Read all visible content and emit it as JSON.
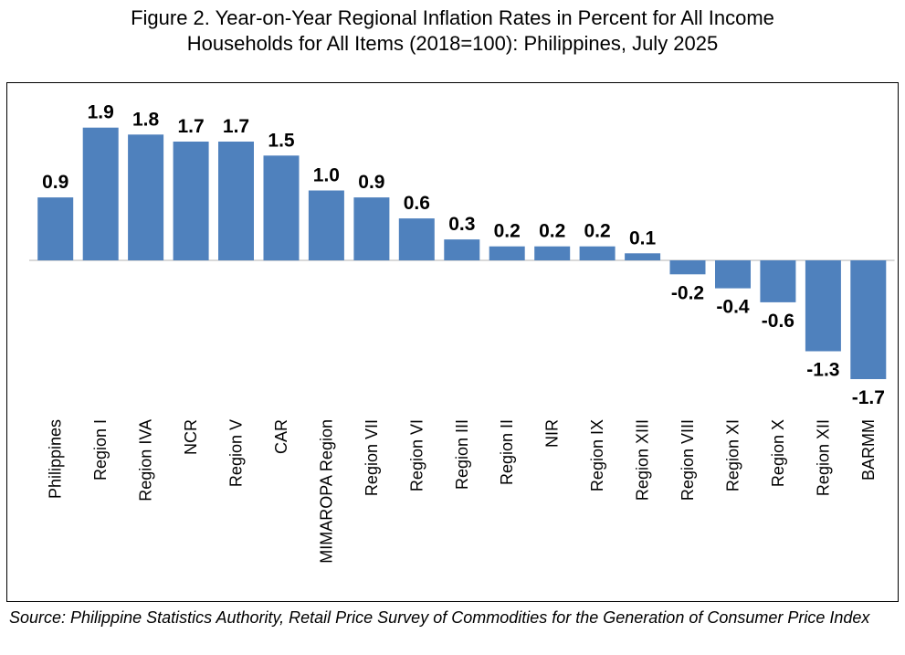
{
  "figure": {
    "title_line1": "Figure 2. Year-on-Year Regional Inflation Rates in Percent for All Income",
    "title_line2": "Households for All Items (2018=100): Philippines, July 2025",
    "source": "Source: Philippine Statistics Authority, Retail Price Survey of Commodities for the Generation of Consumer Price Index"
  },
  "colors": {
    "bar": "#4f81bd",
    "axis": "#d9d9d9",
    "text": "#000000"
  },
  "chart_data": {
    "type": "bar",
    "title": "Year-on-Year Regional Inflation Rates in Percent for All Income Households for All Items (2018=100): Philippines, July 2025",
    "categories": [
      "Philippines",
      "Region I",
      "Region IVA",
      "NCR",
      "Region V",
      "CAR",
      "MIMAROPA Region",
      "Region VII",
      "Region VI",
      "Region III",
      "Region II",
      "NIR",
      "Region IX",
      "Region XIII",
      "Region VIII",
      "Region XI",
      "Region X",
      "Region XII",
      "BARMM"
    ],
    "values": [
      0.9,
      1.9,
      1.8,
      1.7,
      1.7,
      1.5,
      1.0,
      0.9,
      0.6,
      0.3,
      0.2,
      0.2,
      0.2,
      0.1,
      -0.2,
      -0.4,
      -0.6,
      -1.3,
      -1.7
    ],
    "labels": [
      "0.9",
      "1.9",
      "1.8",
      "1.7",
      "1.7",
      "1.5",
      "1.0",
      "0.9",
      "0.6",
      "0.3",
      "0.2",
      "0.2",
      "0.2",
      "0.1",
      "-0.2",
      "-0.4",
      "-0.6",
      "-1.3",
      "-1.7"
    ],
    "xlabel": "",
    "ylabel": "",
    "ylim": [
      -1.9,
      2.2
    ],
    "grid": false,
    "legend": "none"
  }
}
